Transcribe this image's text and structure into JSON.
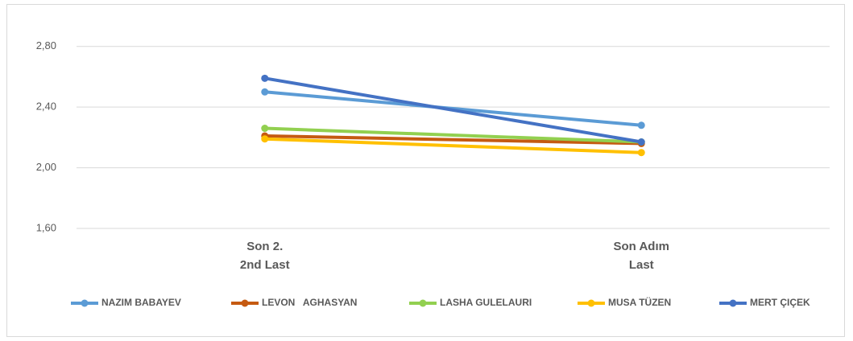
{
  "chart_data": {
    "type": "line",
    "categories": [
      "Son 2.\n2nd Last",
      "Son Adım\nLast"
    ],
    "series": [
      {
        "name": "NAZIM BABAYEV",
        "color": "#5b9bd5",
        "values": [
          2.5,
          2.28
        ]
      },
      {
        "name": "LEVON   AGHASYAN",
        "color": "#c55a11",
        "values": [
          2.21,
          2.16
        ]
      },
      {
        "name": "LASHA GULELAURI",
        "color": "#92d050",
        "values": [
          2.26,
          2.17
        ]
      },
      {
        "name": "MUSA TÜZEN",
        "color": "#ffc000",
        "values": [
          2.19,
          2.1
        ]
      },
      {
        "name": "MERT ÇIÇEK",
        "color": "#4472c4",
        "values": [
          2.59,
          2.17
        ]
      }
    ],
    "ylim": [
      1.6,
      3.0
    ],
    "yticks": [
      {
        "value": 1.6,
        "label": "1,60"
      },
      {
        "value": 2.0,
        "label": "2,00"
      },
      {
        "value": 2.4,
        "label": "2,40"
      },
      {
        "value": 2.8,
        "label": "2,80"
      }
    ],
    "grid": true,
    "legend": "bottom"
  }
}
